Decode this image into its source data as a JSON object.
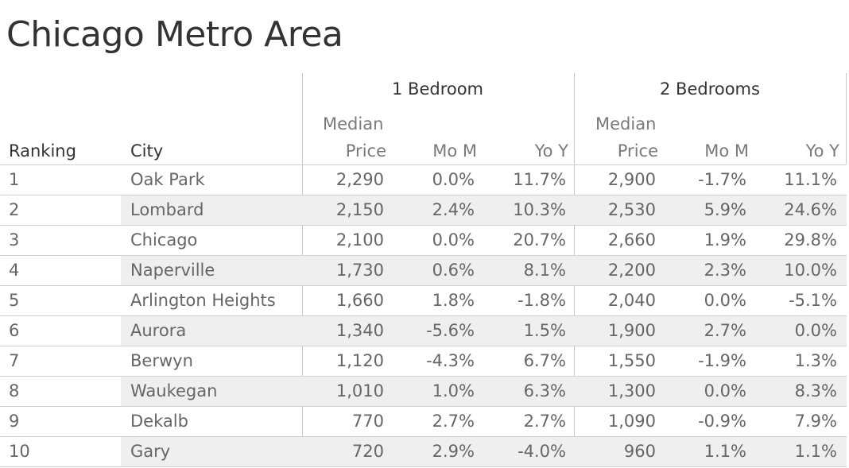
{
  "title": "Chicago Metro Area",
  "header": {
    "group1": "1 Bedroom",
    "group2": "2 Bedrooms",
    "ranking": "Ranking",
    "city": "City",
    "median_top": "Median",
    "median_bottom": "Price",
    "mom": "Mo M",
    "yoy": "Yo Y"
  },
  "chart_data": {
    "type": "table",
    "title": "Chicago Metro Area",
    "column_groups": [
      "1 Bedroom",
      "2 Bedrooms"
    ],
    "columns": [
      "Ranking",
      "City",
      "Median Price",
      "Mo M",
      "Yo Y",
      "Median Price",
      "Mo M",
      "Yo Y"
    ],
    "rows": [
      {
        "rank": "1",
        "city": "Oak Park",
        "b1_price": "2,290",
        "b1_mom": "0.0%",
        "b1_yoy": "11.7%",
        "b2_price": "2,900",
        "b2_mom": "-1.7%",
        "b2_yoy": "11.1%"
      },
      {
        "rank": "2",
        "city": "Lombard",
        "b1_price": "2,150",
        "b1_mom": "2.4%",
        "b1_yoy": "10.3%",
        "b2_price": "2,530",
        "b2_mom": "5.9%",
        "b2_yoy": "24.6%"
      },
      {
        "rank": "3",
        "city": "Chicago",
        "b1_price": "2,100",
        "b1_mom": "0.0%",
        "b1_yoy": "20.7%",
        "b2_price": "2,660",
        "b2_mom": "1.9%",
        "b2_yoy": "29.8%"
      },
      {
        "rank": "4",
        "city": "Naperville",
        "b1_price": "1,730",
        "b1_mom": "0.6%",
        "b1_yoy": "8.1%",
        "b2_price": "2,200",
        "b2_mom": "2.3%",
        "b2_yoy": "10.0%"
      },
      {
        "rank": "5",
        "city": "Arlington Heights",
        "b1_price": "1,660",
        "b1_mom": "1.8%",
        "b1_yoy": "-1.8%",
        "b2_price": "2,040",
        "b2_mom": "0.0%",
        "b2_yoy": "-5.1%"
      },
      {
        "rank": "6",
        "city": "Aurora",
        "b1_price": "1,340",
        "b1_mom": "-5.6%",
        "b1_yoy": "1.5%",
        "b2_price": "1,900",
        "b2_mom": "2.7%",
        "b2_yoy": "0.0%"
      },
      {
        "rank": "7",
        "city": "Berwyn",
        "b1_price": "1,120",
        "b1_mom": "-4.3%",
        "b1_yoy": "6.7%",
        "b2_price": "1,550",
        "b2_mom": "-1.9%",
        "b2_yoy": "1.3%"
      },
      {
        "rank": "8",
        "city": "Waukegan",
        "b1_price": "1,010",
        "b1_mom": "1.0%",
        "b1_yoy": "6.3%",
        "b2_price": "1,300",
        "b2_mom": "0.0%",
        "b2_yoy": "8.3%"
      },
      {
        "rank": "9",
        "city": "Dekalb",
        "b1_price": "770",
        "b1_mom": "2.7%",
        "b1_yoy": "2.7%",
        "b2_price": "1,090",
        "b2_mom": "-0.9%",
        "b2_yoy": "7.9%"
      },
      {
        "rank": "10",
        "city": "Gary",
        "b1_price": "720",
        "b1_mom": "2.9%",
        "b1_yoy": "-4.0%",
        "b2_price": "960",
        "b2_mom": "1.1%",
        "b2_yoy": "1.1%"
      }
    ]
  }
}
